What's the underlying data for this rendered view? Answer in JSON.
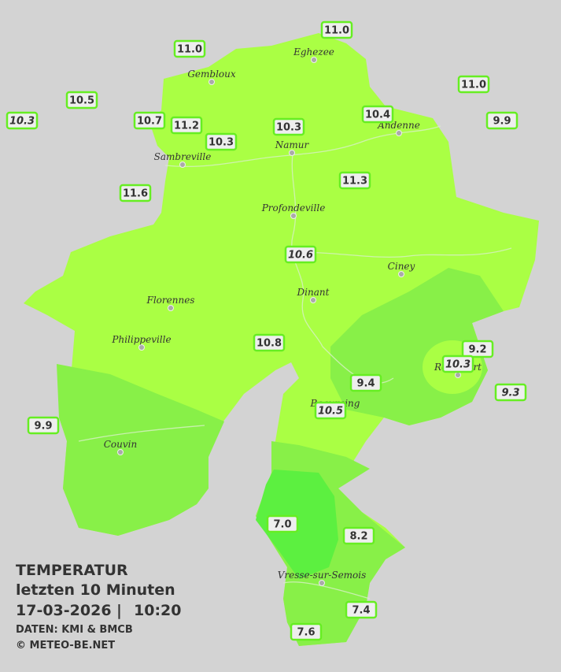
{
  "legend": {
    "title": "TEMPERATUR",
    "period": "letzten 10 Minuten",
    "date": "17-03-2026",
    "separator": "|",
    "time": "10:20",
    "source": "DATEN: KMI & BMCB",
    "copyright": "© METEO-BE.NET"
  },
  "cities": [
    "Eghezee",
    "Gembloux",
    "Andenne",
    "Namur",
    "Sambreville",
    "Profondeville",
    "Ciney",
    "Florennes",
    "Dinant",
    "Philippeville",
    "Rochefort",
    "Beauraing",
    "Couvin",
    "Vresse-sur-Semois"
  ],
  "stations": [
    {
      "label": "11.0",
      "italic": false
    },
    {
      "label": "11.0",
      "italic": false
    },
    {
      "label": "10.5",
      "italic": false
    },
    {
      "label": "10.3",
      "italic": true
    },
    {
      "label": "10.7",
      "italic": false
    },
    {
      "label": "11.2",
      "italic": false
    },
    {
      "label": "10.3",
      "italic": false
    },
    {
      "label": "10.3",
      "italic": false
    },
    {
      "label": "10.4",
      "italic": false
    },
    {
      "label": "11.0",
      "italic": false
    },
    {
      "label": "9.9",
      "italic": false
    },
    {
      "label": "11.6",
      "italic": false
    },
    {
      "label": "11.3",
      "italic": false
    },
    {
      "label": "10.6",
      "italic": true
    },
    {
      "label": "10.8",
      "italic": false
    },
    {
      "label": "9.2",
      "italic": false
    },
    {
      "label": "10.3",
      "italic": true
    },
    {
      "label": "9.3",
      "italic": true
    },
    {
      "label": "9.4",
      "italic": false
    },
    {
      "label": "10.5",
      "italic": true
    },
    {
      "label": "9.9",
      "italic": false
    },
    {
      "label": "7.0",
      "italic": false
    },
    {
      "label": "8.2",
      "italic": false
    },
    {
      "label": "7.4",
      "italic": false
    },
    {
      "label": "7.6",
      "italic": false
    }
  ]
}
